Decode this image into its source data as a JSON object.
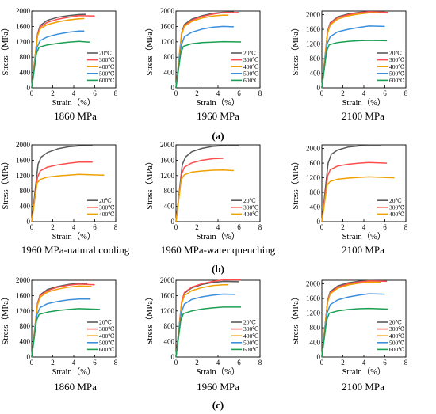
{
  "figure": {
    "row_labels": [
      "(a)",
      "(b)",
      "(c)"
    ],
    "captions": [
      [
        "1860 MPa",
        "1960 MPa",
        "2100 MPa"
      ],
      [
        "1960 MPa-natural cooling",
        "1960 MPa-water quenching",
        "2100 MPa"
      ],
      [
        "1860 MPa",
        "1960 MPa",
        "2100 MPa"
      ]
    ]
  },
  "colors": {
    "20℃": "#5a5a5a",
    "300℃": "#ff4d4d",
    "400℃": "#f0a000",
    "500℃": "#3b8fdc",
    "600℃": "#1aa050"
  },
  "chart_data": [
    {
      "type": "line",
      "xlabel": "Strain（%）",
      "ylabel": "Stress（MPa）",
      "xlim": [
        0,
        8
      ],
      "ylim": [
        0,
        2000
      ],
      "xticks": [
        0,
        2,
        4,
        6,
        8
      ],
      "yticks": [
        0,
        400,
        800,
        1200,
        1600,
        2000
      ],
      "legend": "right",
      "series": [
        {
          "name": "20℃",
          "x": [
            0,
            0.55,
            0.8,
            1.5,
            2.5,
            3.5,
            4.5,
            5.2
          ],
          "y": [
            0,
            1400,
            1620,
            1760,
            1840,
            1880,
            1910,
            1915
          ]
        },
        {
          "name": "300℃",
          "x": [
            0,
            0.55,
            0.8,
            1.5,
            2.5,
            3.5,
            4.5,
            6.0
          ],
          "y": [
            0,
            1380,
            1580,
            1710,
            1790,
            1840,
            1880,
            1870
          ]
        },
        {
          "name": "400℃",
          "x": [
            0,
            0.55,
            0.8,
            1.5,
            2.5,
            3.5,
            4.5,
            5.0
          ],
          "y": [
            0,
            1350,
            1540,
            1650,
            1720,
            1770,
            1800,
            1805
          ]
        },
        {
          "name": "500℃",
          "x": [
            0,
            0.5,
            0.8,
            1.5,
            2.5,
            3.5,
            4.5,
            5.0
          ],
          "y": [
            0,
            1050,
            1230,
            1330,
            1400,
            1450,
            1480,
            1480
          ]
        },
        {
          "name": "600℃",
          "x": [
            0,
            0.45,
            0.7,
            1.5,
            2.5,
            3.5,
            4.5,
            5.5
          ],
          "y": [
            0,
            900,
            1060,
            1120,
            1160,
            1190,
            1210,
            1190
          ]
        }
      ]
    },
    {
      "type": "line",
      "xlabel": "Strain（%）",
      "ylabel": "Stress（MPa）",
      "xlim": [
        0,
        8
      ],
      "ylim": [
        0,
        2000
      ],
      "xticks": [
        0,
        2,
        4,
        6,
        8
      ],
      "yticks": [
        0,
        400,
        800,
        1200,
        1600,
        2000
      ],
      "legend": "right",
      "series": [
        {
          "name": "20℃",
          "x": [
            0,
            0.55,
            0.8,
            1.5,
            2.5,
            3.5,
            4.5,
            5.5
          ],
          "y": [
            0,
            1450,
            1650,
            1790,
            1880,
            1940,
            1970,
            1975
          ]
        },
        {
          "name": "300℃",
          "x": [
            0,
            0.55,
            0.8,
            1.5,
            2.5,
            3.5,
            4.5,
            6.0
          ],
          "y": [
            0,
            1420,
            1620,
            1760,
            1860,
            1920,
            1960,
            1960
          ]
        },
        {
          "name": "400℃",
          "x": [
            0,
            0.55,
            0.8,
            1.5,
            2.5,
            3.5,
            4.5,
            5.0
          ],
          "y": [
            0,
            1400,
            1600,
            1730,
            1820,
            1870,
            1895,
            1890
          ]
        },
        {
          "name": "500℃",
          "x": [
            0,
            0.5,
            0.8,
            1.5,
            2.5,
            3.5,
            4.5,
            5.5
          ],
          "y": [
            0,
            1100,
            1330,
            1450,
            1530,
            1580,
            1600,
            1590
          ]
        },
        {
          "name": "600℃",
          "x": [
            0,
            0.45,
            0.7,
            1.5,
            2.5,
            3.5,
            4.5,
            6.2
          ],
          "y": [
            0,
            900,
            1080,
            1150,
            1180,
            1190,
            1205,
            1195
          ]
        }
      ]
    },
    {
      "type": "line",
      "xlabel": "Strain（%）",
      "ylabel": "Stress（MPa）",
      "xlim": [
        0,
        8
      ],
      "ylim": [
        0,
        2100
      ],
      "xticks": [
        0,
        2,
        4,
        6,
        8
      ],
      "yticks": [
        0,
        400,
        800,
        1200,
        1600,
        2000
      ],
      "legend": "right",
      "series": [
        {
          "name": "20℃",
          "x": [
            0,
            0.55,
            0.8,
            1.5,
            2.5,
            3.5,
            4.5,
            6.0
          ],
          "y": [
            0,
            1550,
            1780,
            1940,
            2020,
            2060,
            2080,
            2080
          ]
        },
        {
          "name": "300℃",
          "x": [
            0,
            0.55,
            0.8,
            1.5,
            2.5,
            3.5,
            4.5,
            6.3
          ],
          "y": [
            0,
            1530,
            1760,
            1920,
            2000,
            2050,
            2080,
            2060
          ]
        },
        {
          "name": "400℃",
          "x": [
            0,
            0.55,
            0.8,
            1.5,
            2.5,
            3.5,
            4.5,
            5.4
          ],
          "y": [
            0,
            1500,
            1720,
            1880,
            1970,
            2020,
            2050,
            2050
          ]
        },
        {
          "name": "500℃",
          "x": [
            0,
            0.5,
            0.8,
            1.5,
            2.5,
            3.5,
            4.5,
            6.0
          ],
          "y": [
            0,
            1200,
            1400,
            1530,
            1600,
            1650,
            1690,
            1680
          ]
        },
        {
          "name": "600℃",
          "x": [
            0,
            0.45,
            0.7,
            1.5,
            2.5,
            3.5,
            4.5,
            6.2
          ],
          "y": [
            0,
            1000,
            1180,
            1240,
            1270,
            1290,
            1300,
            1290
          ]
        }
      ]
    },
    {
      "type": "line",
      "xlabel": "Strain（%）",
      "ylabel": "Stress（MPa）",
      "xlim": [
        0,
        8
      ],
      "ylim": [
        0,
        2000
      ],
      "xticks": [
        0,
        2,
        4,
        6,
        8
      ],
      "yticks": [
        0,
        400,
        800,
        1200,
        1600,
        2000
      ],
      "legend": "right",
      "series": [
        {
          "name": "20℃",
          "x": [
            0,
            0.6,
            0.9,
            1.5,
            2.5,
            3.5,
            4.5,
            5.8
          ],
          "y": [
            0,
            1500,
            1680,
            1800,
            1900,
            1950,
            1975,
            1980
          ]
        },
        {
          "name": "300℃",
          "x": [
            0,
            0.55,
            0.8,
            1.5,
            2.5,
            3.5,
            4.5,
            5.8
          ],
          "y": [
            0,
            1150,
            1320,
            1420,
            1480,
            1520,
            1550,
            1550
          ]
        },
        {
          "name": "400℃",
          "x": [
            0,
            0.5,
            0.8,
            1.5,
            2.5,
            3.5,
            4.5,
            6.9
          ],
          "y": [
            0,
            1000,
            1100,
            1160,
            1190,
            1210,
            1230,
            1210
          ]
        }
      ]
    },
    {
      "type": "line",
      "xlabel": "Strain（%）",
      "ylabel": "Stress（MPa）",
      "xlim": [
        0,
        8
      ],
      "ylim": [
        0,
        2000
      ],
      "xticks": [
        0,
        2,
        4,
        6,
        8
      ],
      "yticks": [
        0,
        400,
        800,
        1200,
        1600,
        2000
      ],
      "legend": "right",
      "series": [
        {
          "name": "20℃",
          "x": [
            0,
            0.6,
            0.9,
            1.5,
            2.5,
            3.5,
            4.5,
            6.0
          ],
          "y": [
            0,
            1480,
            1680,
            1820,
            1910,
            1960,
            1980,
            1980
          ]
        },
        {
          "name": "300℃",
          "x": [
            0,
            0.55,
            0.8,
            1.5,
            2.5,
            3.5,
            4.5
          ],
          "y": [
            0,
            1250,
            1420,
            1530,
            1600,
            1640,
            1650
          ]
        },
        {
          "name": "400℃",
          "x": [
            0,
            0.5,
            0.8,
            1.5,
            2.5,
            3.5,
            4.5,
            5.5
          ],
          "y": [
            0,
            1100,
            1220,
            1290,
            1320,
            1340,
            1345,
            1330
          ]
        }
      ]
    },
    {
      "type": "line",
      "xlabel": "Strain（%）",
      "ylabel": "Stress（MPa）",
      "xlim": [
        0,
        8
      ],
      "ylim": [
        0,
        2100
      ],
      "xticks": [
        0,
        2,
        4,
        6,
        8
      ],
      "yticks": [
        0,
        400,
        800,
        1200,
        1600,
        2000
      ],
      "legend": "right",
      "series": [
        {
          "name": "20℃",
          "x": [
            0,
            0.6,
            0.9,
            1.5,
            2.5,
            3.5,
            4.5,
            5.6
          ],
          "y": [
            0,
            1600,
            1840,
            1960,
            2040,
            2070,
            2090,
            2090
          ]
        },
        {
          "name": "300℃",
          "x": [
            0,
            0.55,
            0.8,
            1.5,
            2.5,
            3.5,
            4.5,
            6.2
          ],
          "y": [
            0,
            1250,
            1420,
            1520,
            1570,
            1600,
            1620,
            1600
          ]
        },
        {
          "name": "400℃",
          "x": [
            0,
            0.5,
            0.8,
            1.5,
            2.5,
            3.5,
            4.5,
            6.9
          ],
          "y": [
            0,
            1000,
            1100,
            1160,
            1190,
            1210,
            1225,
            1200
          ]
        }
      ]
    },
    {
      "type": "line",
      "xlabel": "Strain（%）",
      "ylabel": "Stress（MPa）",
      "xlim": [
        0,
        8
      ],
      "ylim": [
        0,
        2000
      ],
      "xticks": [
        0,
        2,
        4,
        6,
        8
      ],
      "yticks": [
        0,
        400,
        800,
        1200,
        1600,
        2000
      ],
      "legend": "right",
      "series": [
        {
          "name": "20℃",
          "x": [
            0,
            0.55,
            0.8,
            1.5,
            2.5,
            3.5,
            4.5,
            5.3
          ],
          "y": [
            0,
            1400,
            1620,
            1760,
            1840,
            1890,
            1920,
            1920
          ]
        },
        {
          "name": "300℃",
          "x": [
            0,
            0.55,
            0.8,
            1.5,
            2.5,
            3.5,
            4.5,
            6.0
          ],
          "y": [
            0,
            1380,
            1600,
            1730,
            1820,
            1870,
            1900,
            1880
          ]
        },
        {
          "name": "400℃",
          "x": [
            0,
            0.55,
            0.8,
            1.5,
            2.5,
            3.5,
            4.5,
            5.7
          ],
          "y": [
            0,
            1350,
            1560,
            1690,
            1770,
            1820,
            1850,
            1840
          ]
        },
        {
          "name": "500℃",
          "x": [
            0,
            0.5,
            0.8,
            1.5,
            2.5,
            3.5,
            4.5,
            5.6
          ],
          "y": [
            0,
            1100,
            1290,
            1390,
            1450,
            1490,
            1510,
            1510
          ]
        },
        {
          "name": "600℃",
          "x": [
            0,
            0.45,
            0.7,
            1.5,
            2.5,
            3.5,
            4.5,
            6.5
          ],
          "y": [
            0,
            950,
            1110,
            1170,
            1210,
            1240,
            1260,
            1240
          ]
        }
      ]
    },
    {
      "type": "line",
      "xlabel": "Strain（%）",
      "ylabel": "Stress（MPa）",
      "xlim": [
        0,
        8
      ],
      "ylim": [
        0,
        2000
      ],
      "xticks": [
        0,
        2,
        4,
        6,
        8
      ],
      "yticks": [
        0,
        400,
        800,
        1200,
        1600,
        2000
      ],
      "legend": "right",
      "series": [
        {
          "name": "20℃",
          "x": [
            0,
            0.55,
            0.8,
            1.5,
            2.5,
            3.5,
            4.5,
            6.0
          ],
          "y": [
            0,
            1450,
            1660,
            1800,
            1890,
            1940,
            1970,
            1960
          ]
        },
        {
          "name": "300℃",
          "x": [
            0,
            0.55,
            0.8,
            1.5,
            2.5,
            3.5,
            4.5,
            6.2
          ],
          "y": [
            0,
            1450,
            1680,
            1820,
            1910,
            1970,
            2010,
            2010
          ]
        },
        {
          "name": "400℃",
          "x": [
            0,
            0.55,
            0.8,
            1.5,
            2.5,
            3.5,
            4.5,
            5.0
          ],
          "y": [
            0,
            1400,
            1600,
            1730,
            1810,
            1860,
            1880,
            1880
          ]
        },
        {
          "name": "500℃",
          "x": [
            0,
            0.5,
            0.8,
            1.5,
            2.5,
            3.5,
            4.5,
            5.6
          ],
          "y": [
            0,
            1150,
            1380,
            1500,
            1570,
            1610,
            1640,
            1630
          ]
        },
        {
          "name": "600℃",
          "x": [
            0,
            0.45,
            0.7,
            1.5,
            2.5,
            3.5,
            4.5,
            6.2
          ],
          "y": [
            0,
            950,
            1130,
            1200,
            1250,
            1280,
            1300,
            1300
          ]
        }
      ]
    },
    {
      "type": "line",
      "xlabel": "Strain（%）",
      "ylabel": "Stress（MPa）",
      "xlim": [
        0,
        8
      ],
      "ylim": [
        0,
        2100
      ],
      "xticks": [
        0,
        2,
        4,
        6,
        8
      ],
      "yticks": [
        0,
        400,
        800,
        1200,
        1600,
        2000
      ],
      "legend": "right",
      "series": [
        {
          "name": "20℃",
          "x": [
            0,
            0.55,
            0.8,
            1.5,
            2.5,
            3.5,
            4.5,
            6.0
          ],
          "y": [
            0,
            1550,
            1790,
            1940,
            2030,
            2070,
            2090,
            2080
          ]
        },
        {
          "name": "300℃",
          "x": [
            0,
            0.55,
            0.8,
            1.5,
            2.5,
            3.5,
            4.5,
            6.2
          ],
          "y": [
            0,
            1520,
            1760,
            1910,
            2000,
            2050,
            2080,
            2070
          ]
        },
        {
          "name": "400℃",
          "x": [
            0,
            0.55,
            0.8,
            1.5,
            2.5,
            3.5,
            4.5,
            5.6
          ],
          "y": [
            0,
            1500,
            1730,
            1880,
            1970,
            2020,
            2050,
            2040
          ]
        },
        {
          "name": "500℃",
          "x": [
            0,
            0.5,
            0.8,
            1.5,
            2.5,
            3.5,
            4.5,
            6.0
          ],
          "y": [
            0,
            1200,
            1430,
            1560,
            1640,
            1690,
            1730,
            1720
          ]
        },
        {
          "name": "600℃",
          "x": [
            0,
            0.45,
            0.7,
            1.5,
            2.5,
            3.5,
            4.5,
            6.3
          ],
          "y": [
            0,
            1000,
            1200,
            1260,
            1300,
            1320,
            1330,
            1310
          ]
        }
      ]
    }
  ]
}
